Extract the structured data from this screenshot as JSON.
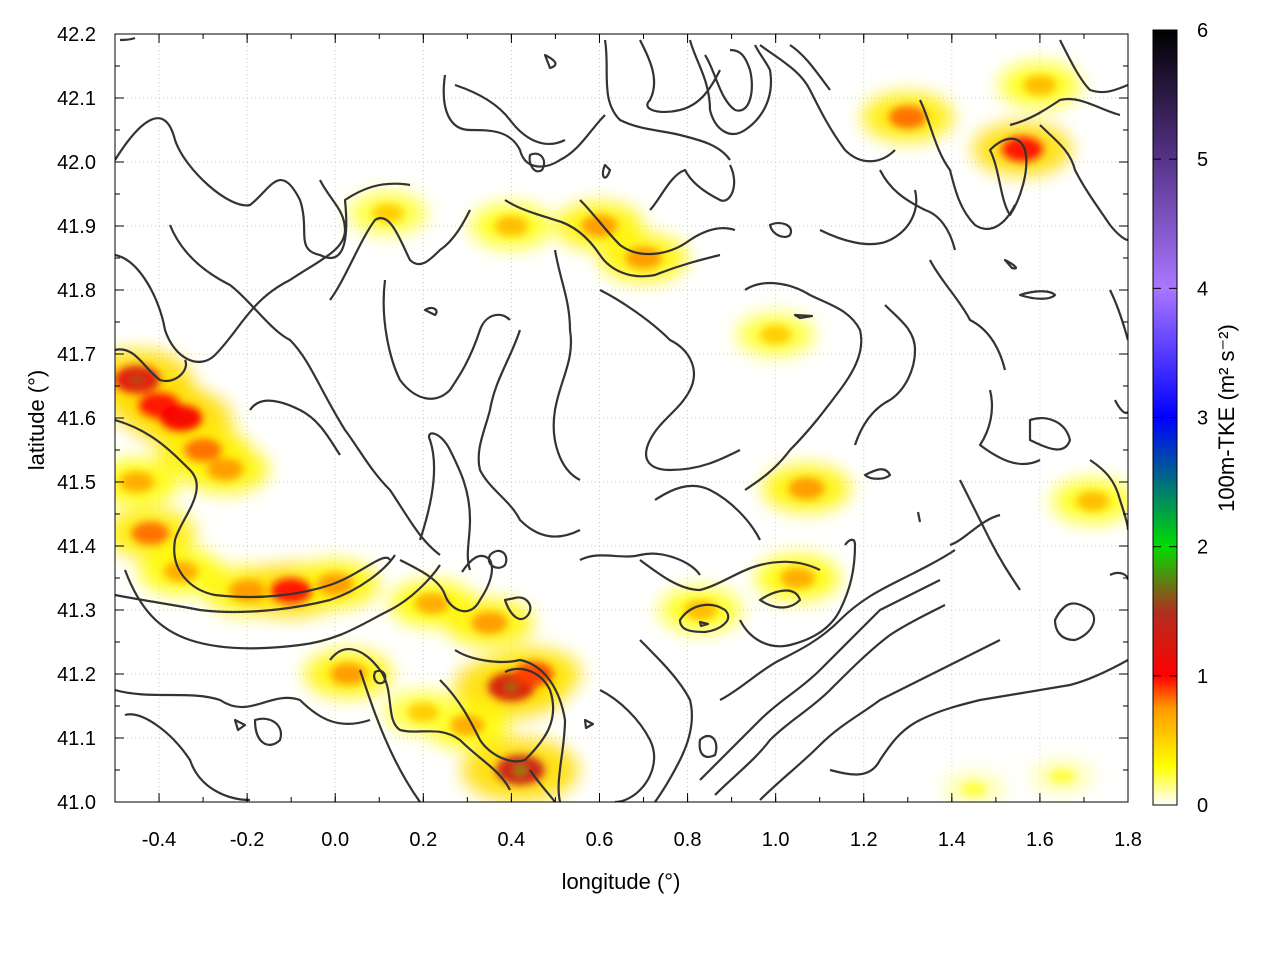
{
  "chart_data": {
    "type": "heatmap",
    "title": "",
    "xlabel": "longitude (°)",
    "ylabel": "latitude (°)",
    "colorbar_label": "100m-TKE (m² s⁻²)",
    "xlim": [
      -0.5,
      1.8
    ],
    "ylim": [
      41.0,
      42.2
    ],
    "x_ticks": [
      -0.4,
      -0.2,
      0.0,
      0.2,
      0.4,
      0.6,
      0.8,
      1.0,
      1.2,
      1.4,
      1.6,
      1.8
    ],
    "x_tick_labels": [
      "-0.4",
      "-0.2",
      "0.0",
      "0.2",
      "0.4",
      "0.6",
      "0.8",
      "1.0",
      "1.2",
      "1.4",
      "1.6",
      "1.8"
    ],
    "y_ticks": [
      41.0,
      41.1,
      41.2,
      41.3,
      41.4,
      41.5,
      41.6,
      41.7,
      41.8,
      41.9,
      42.0,
      42.1,
      42.2
    ],
    "y_tick_labels": [
      "41.0",
      "41.1",
      "41.2",
      "41.3",
      "41.4",
      "41.5",
      "41.6",
      "41.7",
      "41.8",
      "41.9",
      "42.0",
      "42.1",
      "42.2"
    ],
    "clim": [
      0,
      6
    ],
    "c_ticks": [
      0,
      1,
      2,
      3,
      4,
      5,
      6
    ],
    "c_tick_labels": [
      "0",
      "1",
      "2",
      "3",
      "4",
      "5",
      "6"
    ],
    "grid": true,
    "colormap": [
      {
        "v": 0.0,
        "color": "#ffffff"
      },
      {
        "v": 0.3,
        "color": "#ffff00"
      },
      {
        "v": 0.75,
        "color": "#ff9900"
      },
      {
        "v": 1.0,
        "color": "#ff0000"
      },
      {
        "v": 1.5,
        "color": "#b03020"
      },
      {
        "v": 2.0,
        "color": "#00dd00"
      },
      {
        "v": 3.0,
        "color": "#0000ff"
      },
      {
        "v": 4.0,
        "color": "#aa77ff"
      },
      {
        "v": 5.0,
        "color": "#553388"
      },
      {
        "v": 6.0,
        "color": "#000000"
      }
    ],
    "tke_hotspots": [
      {
        "lon": -0.45,
        "lat": 41.66,
        "value": 1.6
      },
      {
        "lon": -0.4,
        "lat": 41.62,
        "value": 1.3
      },
      {
        "lon": -0.35,
        "lat": 41.6,
        "value": 1.4
      },
      {
        "lon": -0.3,
        "lat": 41.55,
        "value": 1.1
      },
      {
        "lon": -0.25,
        "lat": 41.52,
        "value": 1.0
      },
      {
        "lon": -0.45,
        "lat": 41.5,
        "value": 0.9
      },
      {
        "lon": -0.42,
        "lat": 41.42,
        "value": 1.1
      },
      {
        "lon": -0.35,
        "lat": 41.36,
        "value": 0.9
      },
      {
        "lon": -0.2,
        "lat": 41.33,
        "value": 1.0
      },
      {
        "lon": -0.1,
        "lat": 41.33,
        "value": 1.3
      },
      {
        "lon": 0.0,
        "lat": 41.34,
        "value": 1.0
      },
      {
        "lon": 0.03,
        "lat": 41.2,
        "value": 1.0
      },
      {
        "lon": 0.22,
        "lat": 41.31,
        "value": 0.9
      },
      {
        "lon": 0.35,
        "lat": 41.28,
        "value": 1.0
      },
      {
        "lon": 0.4,
        "lat": 41.18,
        "value": 1.7
      },
      {
        "lon": 0.45,
        "lat": 41.2,
        "value": 1.2
      },
      {
        "lon": 0.3,
        "lat": 41.12,
        "value": 0.9
      },
      {
        "lon": 0.42,
        "lat": 41.05,
        "value": 1.8
      },
      {
        "lon": 0.2,
        "lat": 41.14,
        "value": 0.7
      },
      {
        "lon": 0.6,
        "lat": 41.9,
        "value": 1.0
      },
      {
        "lon": 0.7,
        "lat": 41.85,
        "value": 1.0
      },
      {
        "lon": 0.4,
        "lat": 41.9,
        "value": 0.8
      },
      {
        "lon": 0.12,
        "lat": 41.92,
        "value": 0.7
      },
      {
        "lon": 1.07,
        "lat": 41.49,
        "value": 1.0
      },
      {
        "lon": 1.05,
        "lat": 41.35,
        "value": 0.9
      },
      {
        "lon": 0.83,
        "lat": 41.3,
        "value": 0.8
      },
      {
        "lon": 1.3,
        "lat": 42.07,
        "value": 1.1
      },
      {
        "lon": 1.56,
        "lat": 42.02,
        "value": 1.3
      },
      {
        "lon": 1.6,
        "lat": 42.12,
        "value": 0.8
      },
      {
        "lon": 1.72,
        "lat": 41.47,
        "value": 0.8
      },
      {
        "lon": 1.0,
        "lat": 41.73,
        "value": 0.7
      },
      {
        "lon": 1.65,
        "lat": 41.04,
        "value": 0.3
      },
      {
        "lon": 1.45,
        "lat": 41.02,
        "value": 0.3
      }
    ]
  }
}
